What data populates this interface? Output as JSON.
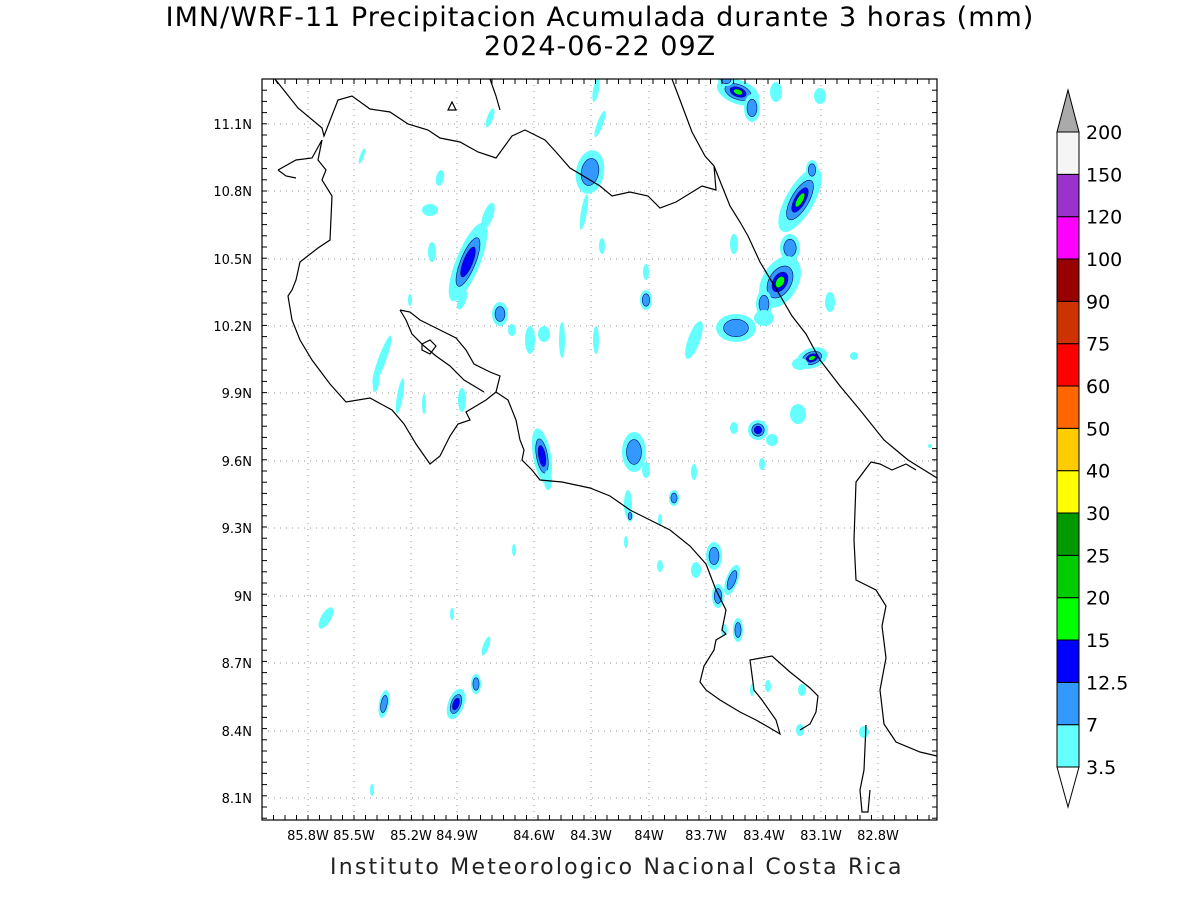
{
  "title": {
    "line1": "IMN/WRF-11 Precipitacion Acumulada durante 3 horas (mm)",
    "line2": "2024-06-22 09Z"
  },
  "footer": "Instituto Meteorologico Nacional Costa Rica",
  "map": {
    "lat_labels": [
      "11.1N",
      "10.8N",
      "10.5N",
      "10.2N",
      "9.9N",
      "9.6N",
      "9.3N",
      "9N",
      "8.7N",
      "8.4N",
      "8.1N"
    ],
    "lon_labels": [
      "85.8W",
      "85.5W",
      "85.2W",
      "84.9W",
      "84.6W",
      "84.3W",
      "84W",
      "83.7W",
      "83.4W",
      "83.1W",
      "82.8W"
    ],
    "grid": "dotted"
  },
  "colorbar": {
    "labels": [
      "3.5",
      "7",
      "12.5",
      "15",
      "20",
      "25",
      "30",
      "40",
      "50",
      "60",
      "75",
      "90",
      "100",
      "120",
      "150",
      "200"
    ],
    "colors": [
      "#66ffff",
      "#3399ff",
      "#0000ff",
      "#00ff00",
      "#00cc00",
      "#009900",
      "#ffff00",
      "#ffcc00",
      "#ff6600",
      "#ff0000",
      "#cc3300",
      "#990000",
      "#ff00ff",
      "#9933cc",
      "#f5f5f5",
      "#aaaaaa"
    ]
  },
  "precip_colors": {
    "light": "#66ffff",
    "medium": "#3399ff",
    "heavy": "#0000ff",
    "green": "#00ff00"
  }
}
